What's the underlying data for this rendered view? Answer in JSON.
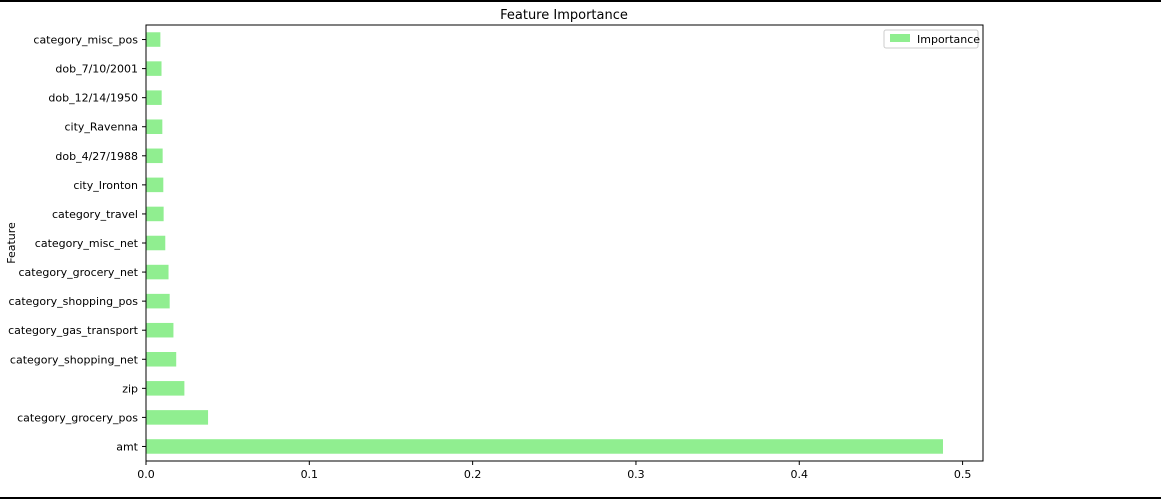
{
  "chart_data": {
    "type": "bar",
    "orientation": "horizontal",
    "title": "Feature Importance",
    "xlabel": "",
    "ylabel": "Feature",
    "xlim": [
      0,
      0.5125
    ],
    "xticks": [
      "0.0",
      "0.1",
      "0.2",
      "0.3",
      "0.4",
      "0.5"
    ],
    "categories": [
      "amt",
      "category_grocery_pos",
      "zip",
      "category_shopping_net",
      "category_gas_transport",
      "category_shopping_pos",
      "category_grocery_net",
      "category_misc_net",
      "category_travel",
      "city_Ironton",
      "dob_4/27/1988",
      "city_Ravenna",
      "dob_12/14/1950",
      "dob_7/10/2001",
      "category_misc_pos"
    ],
    "series": [
      {
        "name": "Importance",
        "color": "#90ee90",
        "values": [
          0.488,
          0.038,
          0.0235,
          0.0185,
          0.0168,
          0.0145,
          0.0138,
          0.0118,
          0.0108,
          0.0106,
          0.0102,
          0.01,
          0.0096,
          0.0095,
          0.0088
        ]
      }
    ],
    "legend_position": "top-right",
    "grid": false
  }
}
